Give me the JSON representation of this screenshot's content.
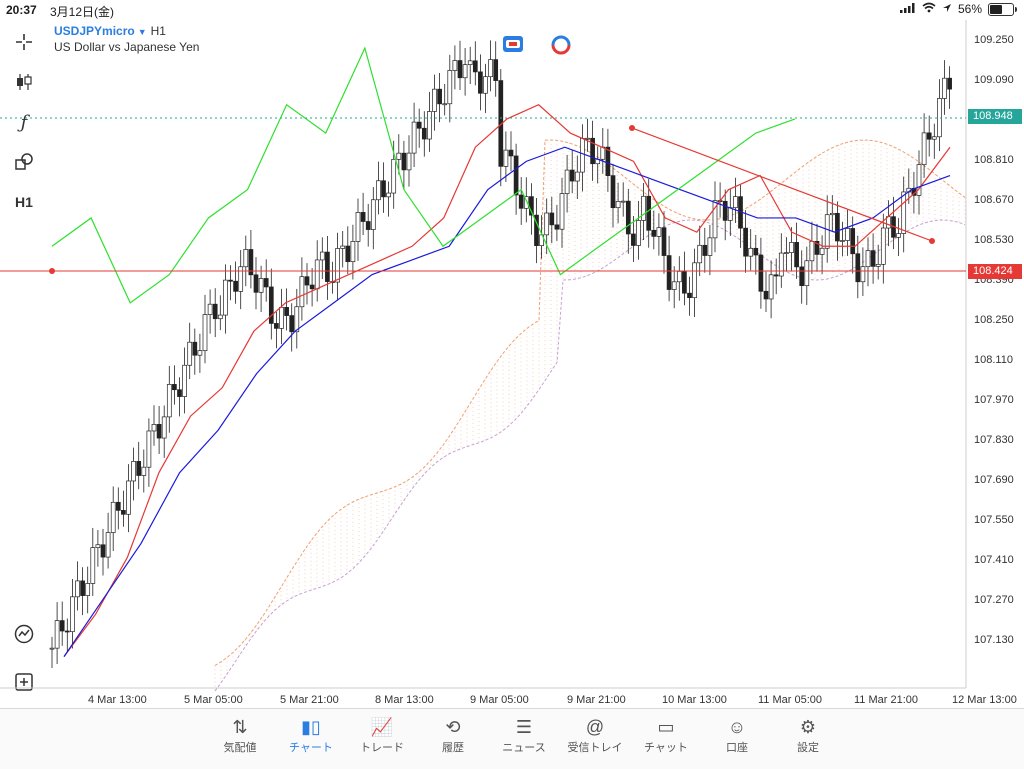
{
  "statusbar": {
    "time": "20:37",
    "date": "3月12日(金)",
    "battery": "56%",
    "battery_level": 0.56
  },
  "symbol": {
    "name": "USDJPYmicro",
    "timeframe": "H1",
    "description": "US Dollar vs Japanese Yen"
  },
  "toolbar": {
    "timeframe_button": "H1",
    "function_button": "ƒ"
  },
  "price_axis": [
    "109.250",
    "109.090",
    "108.810",
    "108.670",
    "108.530",
    "108.390",
    "108.250",
    "108.110",
    "107.970",
    "107.830",
    "107.690",
    "107.550",
    "107.410",
    "107.270",
    "107.130"
  ],
  "price_tags": {
    "current": "108.948",
    "hline": "108.424"
  },
  "time_axis": [
    "4 Mar 13:00",
    "5 Mar 05:00",
    "5 Mar 21:00",
    "8 Mar 13:00",
    "9 Mar 05:00",
    "9 Mar 21:00",
    "10 Mar 13:00",
    "11 Mar 05:00",
    "11 Mar 21:00",
    "12 Mar 13:00"
  ],
  "colors": {
    "accent": "#2a7de1",
    "hline": "#e53935",
    "current_line": "#26a69a",
    "tenkan": "#e53935",
    "kijun": "#1a1adb",
    "chikou": "#2ee02e",
    "cloud": "#f0a070"
  },
  "nav": [
    {
      "label": "気配値",
      "icon": "quotes-icon"
    },
    {
      "label": "チャート",
      "icon": "chart-icon"
    },
    {
      "label": "トレード",
      "icon": "trade-icon"
    },
    {
      "label": "履歴",
      "icon": "history-icon"
    },
    {
      "label": "ニュース",
      "icon": "news-icon"
    },
    {
      "label": "受信トレイ",
      "icon": "mail-icon"
    },
    {
      "label": "チャット",
      "icon": "chat-icon"
    },
    {
      "label": "口座",
      "icon": "account-icon"
    },
    {
      "label": "設定",
      "icon": "settings-icon"
    }
  ],
  "chart_data": {
    "type": "candlestick",
    "symbol": "USDJPYmicro",
    "timeframe": "H1",
    "ylim": [
      107.06,
      109.3
    ],
    "current_price": 108.948,
    "horizontal_line": 108.424,
    "trendline": [
      {
        "x": "9 Mar 23:00",
        "y": 108.9
      },
      {
        "x": "11 Mar 23:00",
        "y": 108.52
      }
    ],
    "tenkan": [
      107.05,
      107.2,
      107.4,
      107.7,
      107.9,
      108.0,
      108.2,
      108.3,
      108.35,
      108.4,
      108.45,
      108.5,
      108.6,
      108.85,
      108.95,
      109.0,
      108.9,
      108.85,
      108.8,
      108.6,
      108.55,
      108.7,
      108.75,
      108.55,
      108.5,
      108.5,
      108.6,
      108.7,
      108.85
    ],
    "kijun": [
      107.05,
      107.25,
      107.45,
      107.7,
      107.85,
      108.05,
      108.2,
      108.3,
      108.4,
      108.45,
      108.5,
      108.7,
      108.8,
      108.85,
      108.8,
      108.75,
      108.7,
      108.65,
      108.6,
      108.6,
      108.55,
      108.6,
      108.7,
      108.75
    ],
    "chikou": [
      108.5,
      108.6,
      108.3,
      108.4,
      108.6,
      108.7,
      109.0,
      108.9,
      109.2,
      108.7,
      108.5,
      108.6,
      108.7,
      108.4,
      108.5,
      108.6,
      108.7,
      108.8,
      108.9,
      108.95
    ]
  }
}
